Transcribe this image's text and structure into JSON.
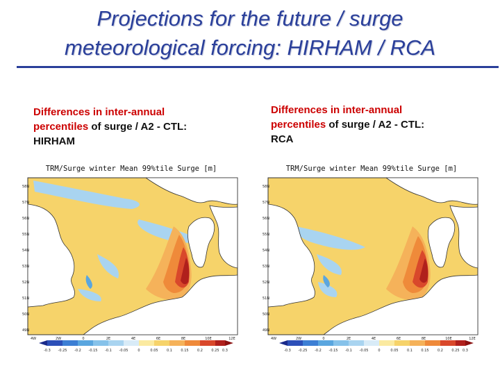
{
  "slide": {
    "title_line1": "Projections for the future / surge",
    "title_line2": "meteorological forcing: HIRHAM / RCA"
  },
  "captions": {
    "left": {
      "part1": "Differences in inter-annual",
      "part2": "percentiles",
      "part3": " of  surge / A2 - CTL:",
      "part4": "HIRHAM"
    },
    "right": {
      "part1": "Differences in inter-annual",
      "part2": "percentiles",
      "part3": " of  surge / A2 - CTL:",
      "part4": "RCA"
    }
  },
  "maps": {
    "left": {
      "map_title": "TRM/Surge winter Mean 99%tile Surge [m]",
      "lat_labels": [
        "58N",
        "57N",
        "56N",
        "55N",
        "54N",
        "53N",
        "52N",
        "51N",
        "50N",
        "49N"
      ],
      "lon_labels": [
        "4W",
        "2W",
        "0",
        "2E",
        "4E",
        "6E",
        "8E",
        "10E",
        "12E"
      ],
      "colorbar_labels": [
        "-0.3",
        "-0.25",
        "-0.2",
        "-0.15",
        "-0.1",
        "-0.05",
        "0",
        "0.05",
        "0.1",
        "0.15",
        "0.2",
        "0.25",
        "0.3"
      ]
    },
    "right": {
      "map_title": "TRM/Surge winter Mean 99%tile Surge [m]",
      "lat_labels": [
        "58N",
        "57N",
        "56N",
        "55N",
        "54N",
        "53N",
        "52N",
        "51N",
        "50N",
        "49N"
      ],
      "lon_labels": [
        "4W",
        "2W",
        "0",
        "2E",
        "4E",
        "6E",
        "8E",
        "10E",
        "12E"
      ],
      "colorbar_labels": [
        "-0.3",
        "-0.25",
        "-0.2",
        "-0.15",
        "-0.1",
        "-0.05",
        "0",
        "0.05",
        "0.1",
        "0.15",
        "0.2",
        "0.25",
        "0.3"
      ]
    }
  },
  "colors": {
    "title": "#2a3f9a",
    "highlight": "#cc0000",
    "land": "#ffffff",
    "sea_base": "#f6d36a",
    "light_blue": "#a9d4f0",
    "mid_blue": "#5aa6df",
    "orange_light": "#f5b25a",
    "orange": "#ef8a3a",
    "red": "#d9482b",
    "dark_red": "#b0201c"
  }
}
